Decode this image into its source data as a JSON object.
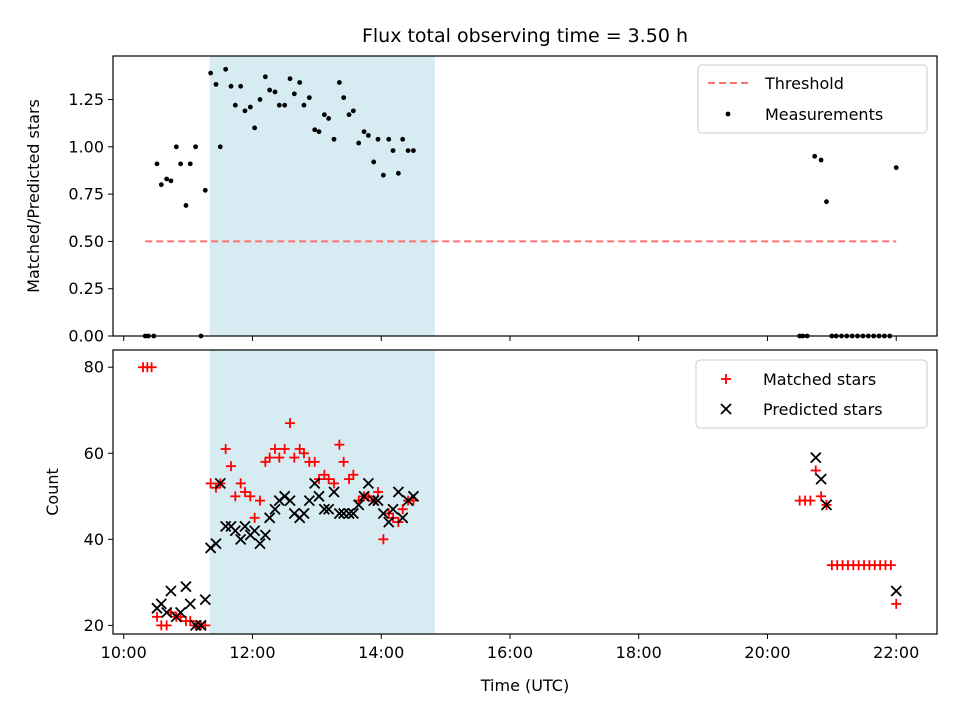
{
  "chart_data": [
    {
      "type": "scatter",
      "title": "Flux total observing time = 3.50 h",
      "xlabel": "",
      "ylabel": "Matched/Predicted stars",
      "xlim": [
        "10:00",
        "22:00"
      ],
      "ylim": [
        0,
        1.48
      ],
      "yticks": [
        "0.00",
        "0.25",
        "0.50",
        "0.75",
        "1.00",
        "1.25"
      ],
      "highlight_band": {
        "start": "11:20",
        "end": "14:50",
        "color": "#add8e6"
      },
      "threshold": {
        "name": "Threshold",
        "value": 0.5,
        "start": "10:20",
        "end": "22:00",
        "color": "#ff7070",
        "style": "dashed"
      },
      "legend": {
        "position": "top-right",
        "entries": [
          "Threshold",
          "Measurements"
        ]
      },
      "series": [
        {
          "name": "Measurements",
          "marker": "dot",
          "color": "#000000",
          "points": [
            [
              "10:20",
              0
            ],
            [
              "10:23",
              0
            ],
            [
              "10:28",
              0
            ],
            [
              "10:31",
              0.91
            ],
            [
              "10:35",
              0.8
            ],
            [
              "10:40",
              0.83
            ],
            [
              "10:44",
              0.82
            ],
            [
              "10:49",
              1.0
            ],
            [
              "10:53",
              0.91
            ],
            [
              "10:58",
              0.69
            ],
            [
              "11:02",
              0.91
            ],
            [
              "11:07",
              1.0
            ],
            [
              "11:12",
              0
            ],
            [
              "11:16",
              0.77
            ],
            [
              "11:21",
              1.39
            ],
            [
              "11:26",
              1.33
            ],
            [
              "11:30",
              1.0
            ],
            [
              "11:35",
              1.41
            ],
            [
              "11:40",
              1.32
            ],
            [
              "11:44",
              1.22
            ],
            [
              "11:49",
              1.32
            ],
            [
              "11:53",
              1.19
            ],
            [
              "11:58",
              1.21
            ],
            [
              "12:02",
              1.1
            ],
            [
              "12:07",
              1.25
            ],
            [
              "12:12",
              1.37
            ],
            [
              "12:16",
              1.3
            ],
            [
              "12:21",
              1.29
            ],
            [
              "12:25",
              1.22
            ],
            [
              "12:30",
              1.22
            ],
            [
              "12:35",
              1.36
            ],
            [
              "12:39",
              1.28
            ],
            [
              "12:44",
              1.34
            ],
            [
              "12:48",
              1.22
            ],
            [
              "12:53",
              1.26
            ],
            [
              "12:58",
              1.09
            ],
            [
              "13:02",
              1.08
            ],
            [
              "13:07",
              1.17
            ],
            [
              "13:11",
              1.15
            ],
            [
              "13:16",
              1.04
            ],
            [
              "13:21",
              1.34
            ],
            [
              "13:25",
              1.26
            ],
            [
              "13:30",
              1.17
            ],
            [
              "13:34",
              1.19
            ],
            [
              "13:39",
              1.02
            ],
            [
              "13:44",
              1.08
            ],
            [
              "13:48",
              1.06
            ],
            [
              "13:53",
              0.92
            ],
            [
              "13:57",
              1.04
            ],
            [
              "14:02",
              0.85
            ],
            [
              "14:07",
              1.04
            ],
            [
              "14:11",
              0.98
            ],
            [
              "14:16",
              0.86
            ],
            [
              "14:20",
              1.04
            ],
            [
              "14:25",
              0.98
            ],
            [
              "14:30",
              0.98
            ],
            [
              "20:30",
              0
            ],
            [
              "20:33",
              0
            ],
            [
              "20:37",
              0
            ],
            [
              "20:44",
              0.95
            ],
            [
              "20:50",
              0.93
            ],
            [
              "20:55",
              0.71
            ],
            [
              "21:00",
              0
            ],
            [
              "21:04",
              0
            ],
            [
              "21:09",
              0
            ],
            [
              "21:14",
              0
            ],
            [
              "21:19",
              0
            ],
            [
              "21:24",
              0
            ],
            [
              "21:29",
              0
            ],
            [
              "21:34",
              0
            ],
            [
              "21:39",
              0
            ],
            [
              "21:44",
              0
            ],
            [
              "21:49",
              0
            ],
            [
              "21:54",
              0
            ],
            [
              "22:00",
              0.89
            ]
          ]
        }
      ]
    },
    {
      "type": "scatter",
      "title": "",
      "xlabel": "Time (UTC)",
      "ylabel": "Count",
      "xlim": [
        "10:00",
        "22:00"
      ],
      "ylim": [
        18,
        84
      ],
      "xticks": [
        "10:00",
        "12:00",
        "14:00",
        "16:00",
        "18:00",
        "20:00",
        "22:00"
      ],
      "yticks": [
        "20",
        "40",
        "60",
        "80"
      ],
      "highlight_band": {
        "start": "11:20",
        "end": "14:50",
        "color": "#add8e6"
      },
      "legend": {
        "position": "top-right",
        "entries": [
          "Matched stars",
          "Predicted stars"
        ]
      },
      "series": [
        {
          "name": "Matched stars",
          "marker": "plus",
          "color": "#ff0000",
          "points": [
            [
              "10:18",
              80
            ],
            [
              "10:22",
              80
            ],
            [
              "10:26",
              80
            ],
            [
              "10:31",
              22
            ],
            [
              "10:35",
              20
            ],
            [
              "10:40",
              20
            ],
            [
              "10:44",
              23
            ],
            [
              "10:49",
              22
            ],
            [
              "10:53",
              22
            ],
            [
              "10:58",
              21
            ],
            [
              "11:02",
              21
            ],
            [
              "11:07",
              20
            ],
            [
              "11:12",
              20
            ],
            [
              "11:16",
              20
            ],
            [
              "11:21",
              53
            ],
            [
              "11:26",
              52
            ],
            [
              "11:30",
              53
            ],
            [
              "11:35",
              61
            ],
            [
              "11:40",
              57
            ],
            [
              "11:44",
              50
            ],
            [
              "11:49",
              53
            ],
            [
              "11:53",
              51
            ],
            [
              "11:58",
              50
            ],
            [
              "12:02",
              45
            ],
            [
              "12:07",
              49
            ],
            [
              "12:12",
              58
            ],
            [
              "12:16",
              59
            ],
            [
              "12:21",
              61
            ],
            [
              "12:25",
              59
            ],
            [
              "12:30",
              61
            ],
            [
              "12:35",
              67
            ],
            [
              "12:39",
              59
            ],
            [
              "12:44",
              61
            ],
            [
              "12:48",
              60
            ],
            [
              "12:53",
              58
            ],
            [
              "12:58",
              58
            ],
            [
              "13:02",
              54
            ],
            [
              "13:07",
              55
            ],
            [
              "13:11",
              54
            ],
            [
              "13:16",
              53
            ],
            [
              "13:21",
              62
            ],
            [
              "13:25",
              58
            ],
            [
              "13:30",
              54
            ],
            [
              "13:34",
              55
            ],
            [
              "13:39",
              49
            ],
            [
              "13:44",
              50
            ],
            [
              "13:48",
              50
            ],
            [
              "13:53",
              49
            ],
            [
              "13:57",
              51
            ],
            [
              "14:02",
              40
            ],
            [
              "14:07",
              46
            ],
            [
              "14:11",
              45
            ],
            [
              "14:16",
              44
            ],
            [
              "14:20",
              47
            ],
            [
              "14:25",
              49
            ],
            [
              "14:30",
              49
            ],
            [
              "20:30",
              49
            ],
            [
              "20:35",
              49
            ],
            [
              "20:40",
              49
            ],
            [
              "20:45",
              56
            ],
            [
              "20:50",
              50
            ],
            [
              "20:55",
              48
            ],
            [
              "21:00",
              34
            ],
            [
              "21:05",
              34
            ],
            [
              "21:10",
              34
            ],
            [
              "21:15",
              34
            ],
            [
              "21:20",
              34
            ],
            [
              "21:25",
              34
            ],
            [
              "21:30",
              34
            ],
            [
              "21:35",
              34
            ],
            [
              "21:40",
              34
            ],
            [
              "21:45",
              34
            ],
            [
              "21:50",
              34
            ],
            [
              "21:55",
              34
            ],
            [
              "22:00",
              25
            ]
          ]
        },
        {
          "name": "Predicted stars",
          "marker": "x",
          "color": "#000000",
          "points": [
            [
              "10:31",
              24
            ],
            [
              "10:35",
              25
            ],
            [
              "10:40",
              23
            ],
            [
              "10:44",
              28
            ],
            [
              "10:49",
              22
            ],
            [
              "10:53",
              23
            ],
            [
              "10:58",
              29
            ],
            [
              "11:02",
              25
            ],
            [
              "11:07",
              20
            ],
            [
              "11:12",
              20
            ],
            [
              "11:16",
              26
            ],
            [
              "11:21",
              38
            ],
            [
              "11:26",
              39
            ],
            [
              "11:30",
              53
            ],
            [
              "11:35",
              43
            ],
            [
              "11:40",
              43
            ],
            [
              "11:44",
              42
            ],
            [
              "11:49",
              40
            ],
            [
              "11:53",
              43
            ],
            [
              "11:58",
              41
            ],
            [
              "12:02",
              42
            ],
            [
              "12:07",
              39
            ],
            [
              "12:12",
              41
            ],
            [
              "12:16",
              45
            ],
            [
              "12:21",
              47
            ],
            [
              "12:25",
              49
            ],
            [
              "12:30",
              50
            ],
            [
              "12:35",
              49
            ],
            [
              "12:39",
              46
            ],
            [
              "12:44",
              45
            ],
            [
              "12:48",
              46
            ],
            [
              "12:53",
              49
            ],
            [
              "12:58",
              53
            ],
            [
              "13:02",
              50
            ],
            [
              "13:07",
              47
            ],
            [
              "13:11",
              47
            ],
            [
              "13:16",
              51
            ],
            [
              "13:21",
              46
            ],
            [
              "13:25",
              46
            ],
            [
              "13:30",
              46
            ],
            [
              "13:34",
              46
            ],
            [
              "13:39",
              48
            ],
            [
              "13:44",
              50
            ],
            [
              "13:48",
              53
            ],
            [
              "13:53",
              49
            ],
            [
              "13:57",
              49
            ],
            [
              "14:02",
              46
            ],
            [
              "14:07",
              44
            ],
            [
              "14:11",
              47
            ],
            [
              "14:16",
              51
            ],
            [
              "14:20",
              45
            ],
            [
              "14:25",
              49
            ],
            [
              "14:30",
              50
            ],
            [
              "20:45",
              59
            ],
            [
              "20:50",
              54
            ],
            [
              "20:55",
              48
            ],
            [
              "22:00",
              28
            ]
          ]
        }
      ]
    }
  ]
}
